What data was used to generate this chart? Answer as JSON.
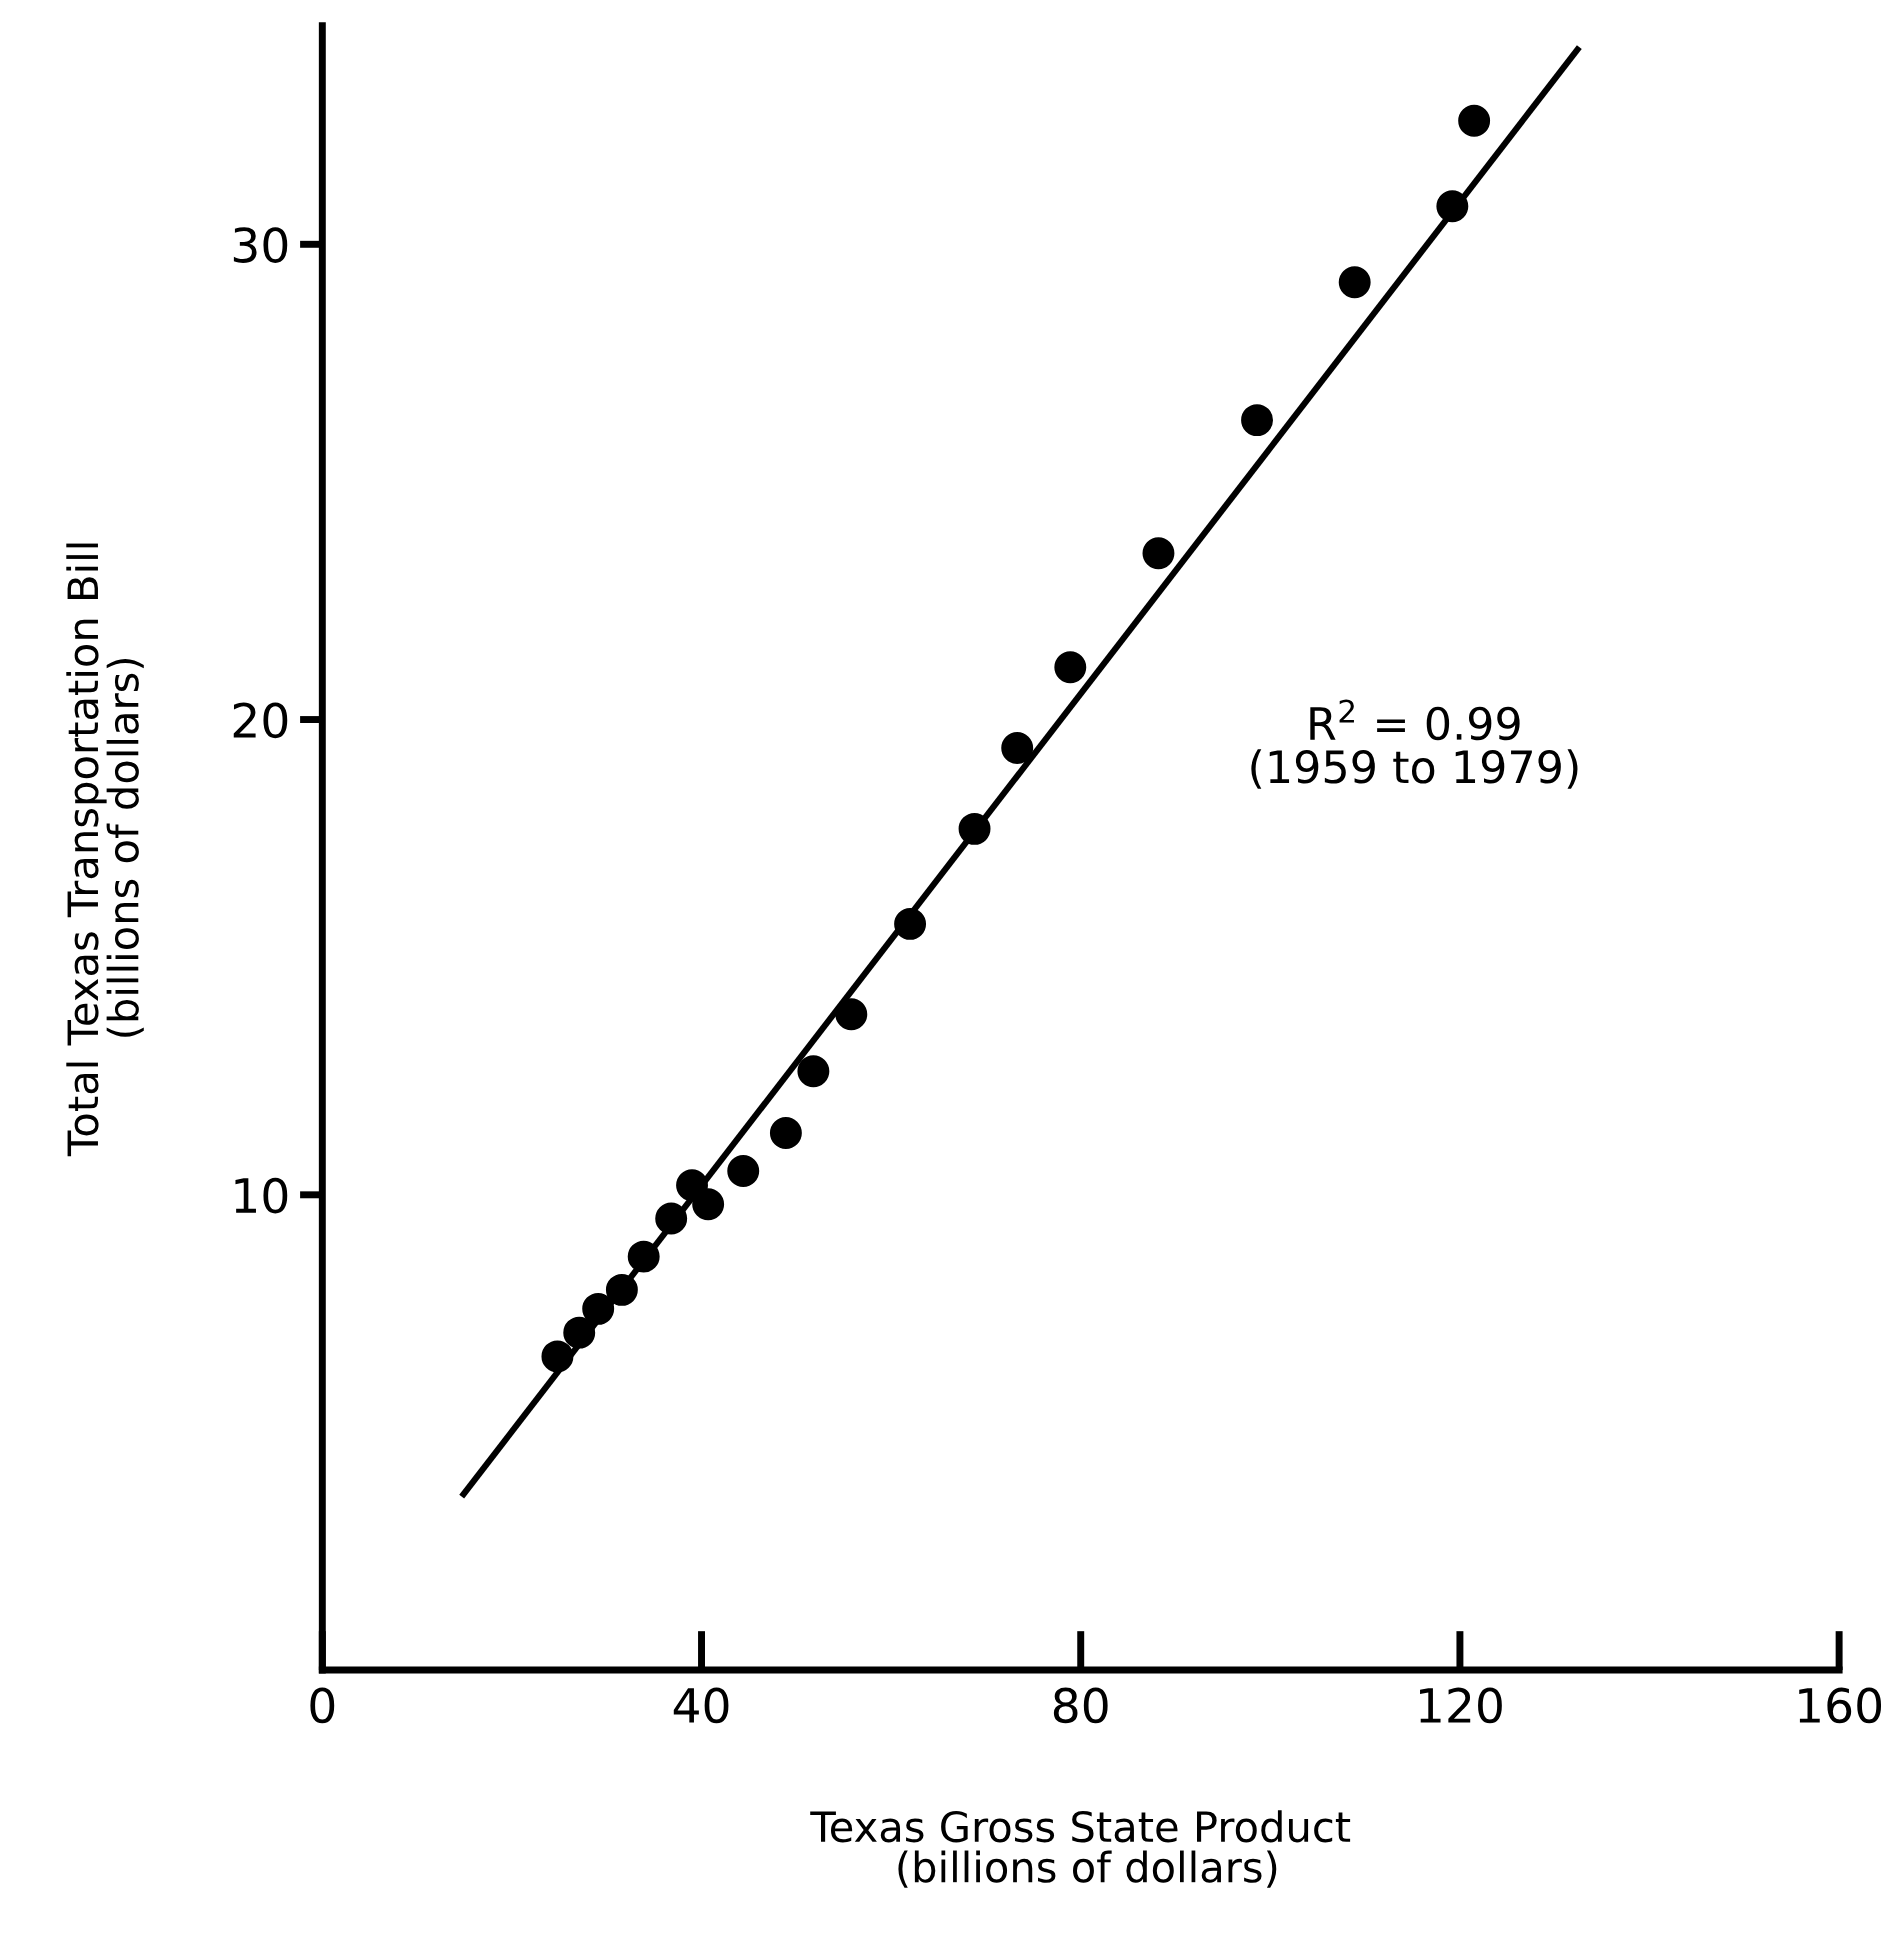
{
  "chart_data": {
    "type": "scatter",
    "xlabel": "Texas Gross State Product\n (billions of dollars)",
    "ylabel": "Total Texas Transportation Bill\n(billions of dollars)",
    "xlim": [
      0,
      160
    ],
    "ylim": [
      0,
      34.6
    ],
    "xticks": [
      0,
      40,
      80,
      120,
      160
    ],
    "yticks": [
      10,
      20,
      30
    ],
    "annotations": [
      "R$^{2}$ = 0.99\n(1959 to 1979)"
    ],
    "grid": false,
    "legend": false,
    "series": [
      {
        "color": "#000000",
        "marker": "circle",
        "x": [
          24.8,
          27.1,
          29.1,
          31.6,
          33.9,
          36.8,
          39.0,
          40.7,
          44.4,
          48.9,
          51.8,
          55.8,
          62.0,
          68.8,
          73.3,
          78.9,
          88.2,
          98.6,
          108.9,
          119.2,
          121.5
        ],
        "values": [
          6.6,
          7.1,
          7.6,
          8.0,
          8.7,
          9.5,
          10.2,
          9.8,
          10.5,
          11.3,
          12.6,
          13.8,
          15.7,
          17.7,
          19.4,
          21.1,
          23.5,
          26.3,
          29.2,
          30.8,
          32.6
        ]
      },
      {
        "type": "line",
        "color": "#000000",
        "marker": "none",
        "line_style": "solid",
        "x": [
          14.9,
          132.4
        ],
        "values": [
          3.7,
          34.1
        ]
      }
    ]
  }
}
